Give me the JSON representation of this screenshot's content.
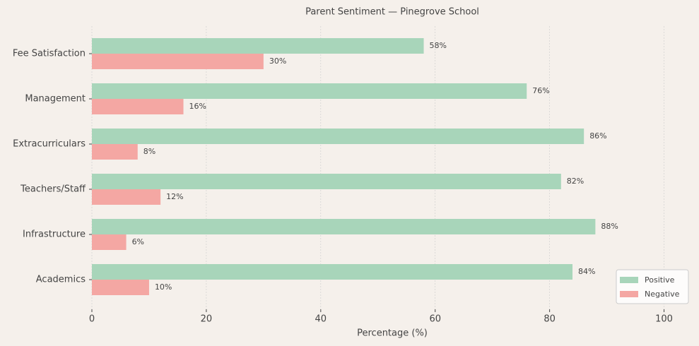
{
  "chart_data": {
    "type": "barh",
    "title": "Parent Sentiment — Pinegrove School",
    "xlabel": "Percentage (%)",
    "categories": [
      "Fee Satisfaction",
      "Management",
      "Extracurriculars",
      "Teachers/Staff",
      "Infrastructure",
      "Academics"
    ],
    "series": [
      {
        "name": "Positive",
        "color": "#a8d5ba",
        "values": [
          58,
          76,
          86,
          82,
          88,
          84
        ],
        "value_labels": [
          "58%",
          "76%",
          "86%",
          "82%",
          "88%",
          "84%"
        ]
      },
      {
        "name": "Negative",
        "color": "#f4a7a3",
        "values": [
          30,
          16,
          8,
          12,
          6,
          10
        ],
        "value_labels": [
          "30%",
          "16%",
          "8%",
          "12%",
          "6%",
          "10%"
        ]
      }
    ],
    "xlim": [
      0,
      105
    ],
    "xticks": [
      0,
      20,
      40,
      60,
      80,
      100
    ],
    "grid": true,
    "legend": "lower right"
  }
}
